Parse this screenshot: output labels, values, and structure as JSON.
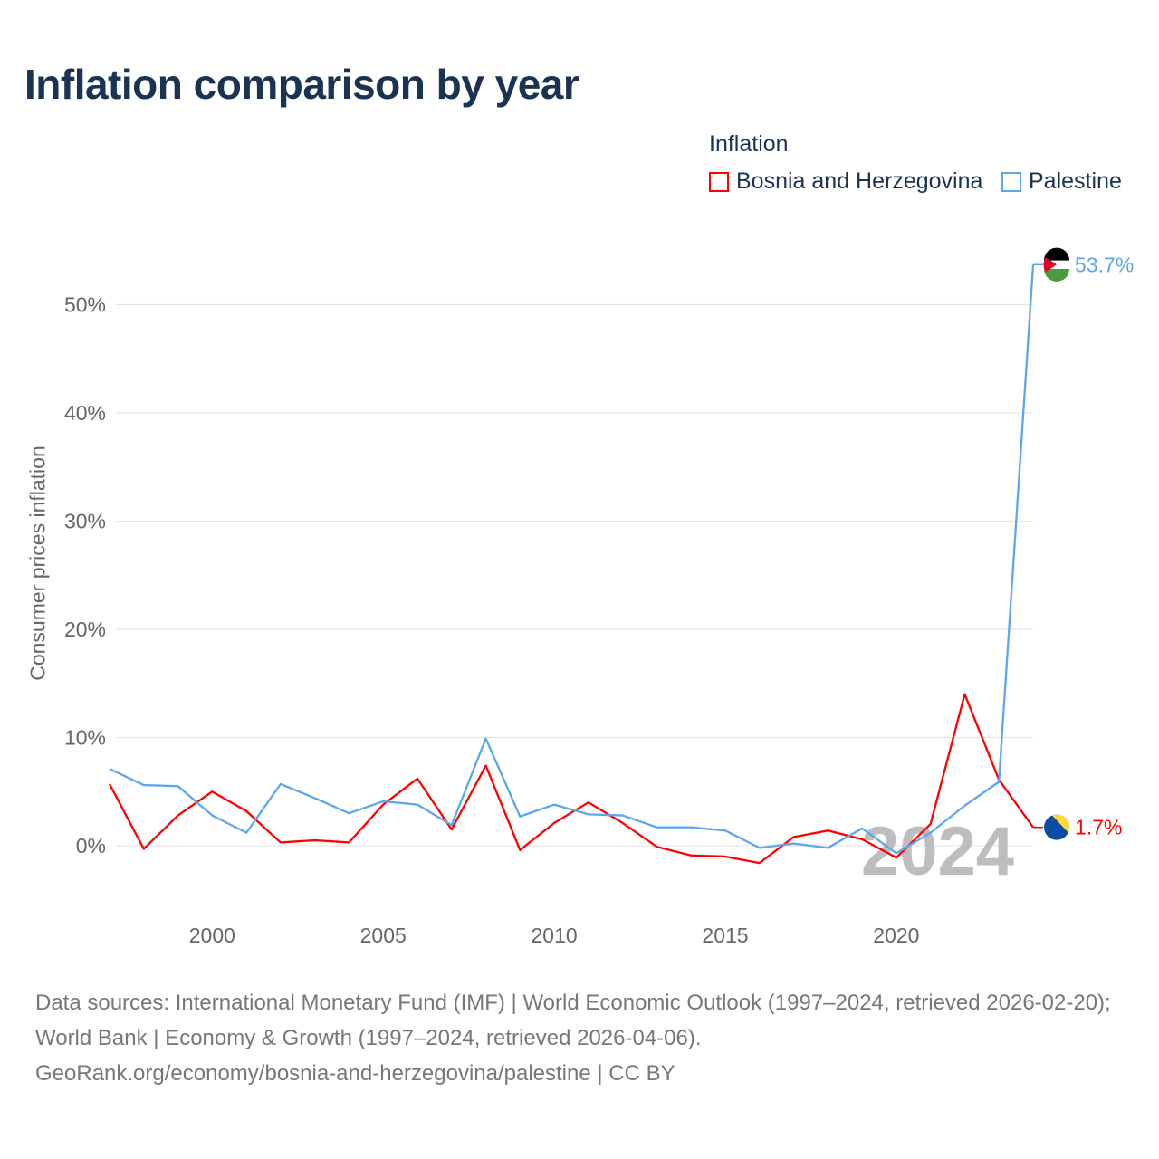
{
  "chart_data": {
    "type": "line",
    "title": "Inflation comparison by year",
    "legend_title": "Inflation",
    "ylabel": "Consumer prices inflation",
    "xlabel": "",
    "ylim": [
      -5,
      55
    ],
    "xlim": [
      1997,
      2024
    ],
    "y_ticks": [
      0,
      10,
      20,
      30,
      40,
      50
    ],
    "y_tick_labels": [
      "0%",
      "10%",
      "20%",
      "30%",
      "40%",
      "50%"
    ],
    "x_ticks": [
      2000,
      2005,
      2010,
      2015,
      2020
    ],
    "x_tick_labels": [
      "2000",
      "2005",
      "2010",
      "2015",
      "2020"
    ],
    "legend_position": "top-right",
    "year_watermark": "2024",
    "x": [
      1997,
      1998,
      1999,
      2000,
      2001,
      2002,
      2003,
      2004,
      2005,
      2006,
      2007,
      2008,
      2009,
      2010,
      2011,
      2012,
      2013,
      2014,
      2015,
      2016,
      2017,
      2018,
      2019,
      2020,
      2021,
      2022,
      2023,
      2024
    ],
    "series": [
      {
        "name": "Bosnia and Herzegovina",
        "color": "#ff0000",
        "end_label": "1.7%",
        "values": [
          5.7,
          -0.3,
          2.8,
          5.0,
          3.2,
          0.3,
          0.5,
          0.3,
          3.8,
          6.2,
          1.5,
          7.4,
          -0.4,
          2.1,
          4.0,
          2.1,
          -0.1,
          -0.9,
          -1.0,
          -1.6,
          0.8,
          1.4,
          0.6,
          -1.1,
          2.0,
          14.0,
          6.1,
          1.7
        ]
      },
      {
        "name": "Palestine",
        "color": "#5ba7ec",
        "end_label": "53.7%",
        "values": [
          7.1,
          5.6,
          5.5,
          2.8,
          1.2,
          5.7,
          4.4,
          3.0,
          4.1,
          3.8,
          1.9,
          9.9,
          2.7,
          3.8,
          2.9,
          2.8,
          1.7,
          1.7,
          1.4,
          -0.2,
          0.2,
          -0.2,
          1.6,
          -0.7,
          1.2,
          3.7,
          5.9,
          53.7
        ]
      }
    ]
  },
  "footer": {
    "line1": "Data sources: International Monetary Fund (IMF) | World Economic Outlook (1997–2024, retrieved 2026-02-20); World Bank | Economy & Growth (1997–2024, retrieved 2026-04-06).",
    "line2": "GeoRank.org/economy/bosnia-and-herzegovina/palestine | CC BY"
  }
}
